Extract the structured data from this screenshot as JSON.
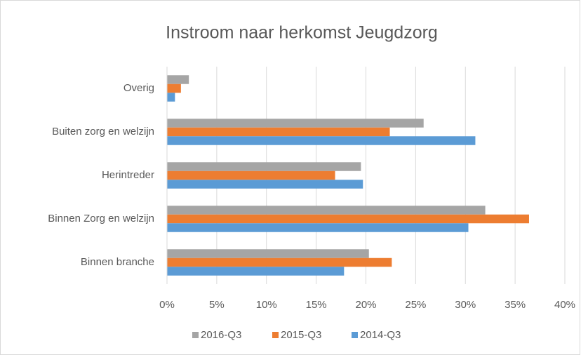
{
  "chart_data": {
    "type": "hbar",
    "title": "Instroom naar herkomst Jeugdzorg",
    "categories": [
      "Overig",
      "Buiten zorg en welzijn",
      "Herintreder",
      "Binnen Zorg en welzijn",
      "Binnen branche"
    ],
    "series": [
      {
        "name": "2016-Q3",
        "color": "#a5a5a5",
        "values": [
          2.2,
          25.8,
          19.5,
          32.0,
          20.3
        ]
      },
      {
        "name": "2015-Q3",
        "color": "#ed7d31",
        "values": [
          1.4,
          22.4,
          16.9,
          36.4,
          22.6
        ]
      },
      {
        "name": "2014-Q3",
        "color": "#5b9bd5",
        "values": [
          0.8,
          31.0,
          19.7,
          30.3,
          17.8
        ]
      }
    ],
    "xlim": [
      0,
      40
    ],
    "xticks": [
      {
        "value": 0,
        "label": "0%"
      },
      {
        "value": 5,
        "label": "5%"
      },
      {
        "value": 10,
        "label": "10%"
      },
      {
        "value": 15,
        "label": "15%"
      },
      {
        "value": 20,
        "label": "20%"
      },
      {
        "value": 25,
        "label": "25%"
      },
      {
        "value": 30,
        "label": "30%"
      },
      {
        "value": 35,
        "label": "35%"
      },
      {
        "value": 40,
        "label": "40%"
      }
    ],
    "grid": true,
    "legend": "bottom"
  }
}
